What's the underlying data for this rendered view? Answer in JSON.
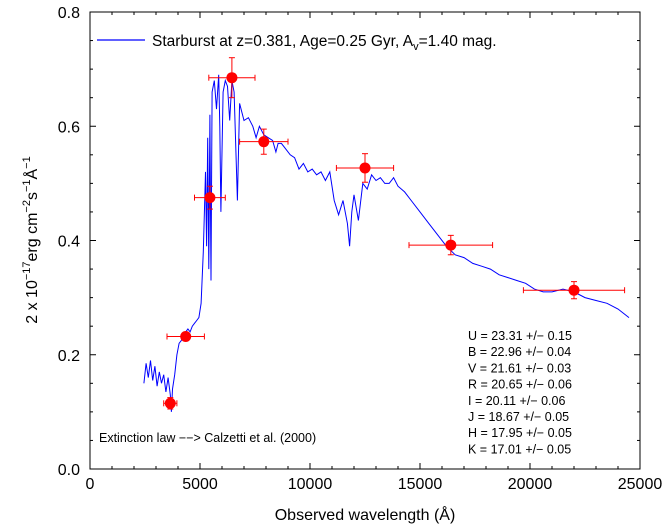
{
  "chart_data": {
    "type": "line",
    "xlabel": "Observed wavelength (Å)",
    "ylabel": {
      "prefix": "2 x 10",
      "exp1": "−17",
      "mid1": "erg cm",
      "exp2": "−2",
      "mid2": "s",
      "exp3": "−1",
      "mid3": "Å",
      "exp4": "−1"
    },
    "xlim": [
      0,
      25000
    ],
    "ylim": [
      0.0,
      0.8
    ],
    "xticks": [
      0,
      5000,
      10000,
      15000,
      20000,
      25000
    ],
    "xtick_labels": [
      "0",
      "5000",
      "10000",
      "15000",
      "20000",
      "25000"
    ],
    "yticks": [
      0.0,
      0.2,
      0.4,
      0.6,
      0.8
    ],
    "ytick_labels": [
      "0.0",
      "0.2",
      "0.4",
      "0.6",
      "0.8"
    ],
    "grid": false,
    "legend_position": "top",
    "colors": {
      "model": "#0000ff",
      "photometry": "#ff0000"
    },
    "legend": {
      "prefix": "Starburst at z=0.381, Age=0.25 Gyr, A",
      "sub": "v",
      "suffix": "=1.40 mag."
    },
    "series": [
      {
        "name": "Starburst at z=0.381, Age=0.25 Gyr, Av=1.40 mag.",
        "kind": "line",
        "x": [
          2450,
          2550,
          2650,
          2750,
          2850,
          2950,
          3050,
          3150,
          3250,
          3350,
          3450,
          3550,
          3650,
          3700,
          3750,
          3850,
          3950,
          4050,
          4150,
          4250,
          4350,
          4450,
          4550,
          4650,
          4750,
          4850,
          4950,
          5050,
          5150,
          5250,
          5300,
          5350,
          5400,
          5450,
          5500,
          5550,
          5650,
          5750,
          5850,
          5900,
          5950,
          6050,
          6150,
          6250,
          6350,
          6450,
          6550,
          6700,
          6800,
          6900,
          7000,
          7200,
          7400,
          7550,
          7700,
          7900,
          8100,
          8300,
          8450,
          8550,
          8700,
          8900,
          9100,
          9300,
          9500,
          9700,
          9900,
          10100,
          10300,
          10500,
          10700,
          10900,
          11100,
          11300,
          11500,
          11700,
          11800,
          11900,
          12000,
          12200,
          12400,
          12600,
          12800,
          13000,
          13200,
          13400,
          13600,
          13800,
          14000,
          14300,
          14600,
          15000,
          15400,
          15800,
          16200,
          16600,
          17000,
          17400,
          17800,
          18200,
          18600,
          19000,
          19400,
          19800,
          20200,
          20600,
          21000,
          21500,
          22000,
          22500,
          23000,
          23500,
          24000,
          24500
        ],
        "y": [
          0.15,
          0.185,
          0.16,
          0.19,
          0.155,
          0.18,
          0.145,
          0.17,
          0.15,
          0.165,
          0.135,
          0.16,
          0.13,
          0.1,
          0.14,
          0.165,
          0.2,
          0.22,
          0.225,
          0.235,
          0.24,
          0.245,
          0.24,
          0.25,
          0.255,
          0.26,
          0.265,
          0.29,
          0.38,
          0.52,
          0.39,
          0.58,
          0.35,
          0.62,
          0.33,
          0.66,
          0.68,
          0.63,
          0.69,
          0.6,
          0.45,
          0.66,
          0.68,
          0.67,
          0.61,
          0.68,
          0.66,
          0.47,
          0.64,
          0.625,
          0.61,
          0.615,
          0.6,
          0.58,
          0.6,
          0.585,
          0.58,
          0.575,
          0.555,
          0.57,
          0.57,
          0.56,
          0.55,
          0.545,
          0.525,
          0.535,
          0.52,
          0.525,
          0.515,
          0.52,
          0.505,
          0.52,
          0.47,
          0.445,
          0.47,
          0.43,
          0.39,
          0.45,
          0.48,
          0.435,
          0.5,
          0.49,
          0.515,
          0.505,
          0.51,
          0.5,
          0.5,
          0.51,
          0.495,
          0.485,
          0.47,
          0.45,
          0.43,
          0.41,
          0.39,
          0.375,
          0.37,
          0.36,
          0.355,
          0.35,
          0.34,
          0.335,
          0.33,
          0.325,
          0.315,
          0.31,
          0.31,
          0.315,
          0.31,
          0.3,
          0.295,
          0.29,
          0.28,
          0.265
        ]
      },
      {
        "name": "photometry",
        "kind": "points",
        "points": [
          {
            "band": "U",
            "x": 3650,
            "y": 0.115,
            "xerr": 300,
            "yerr": 0.01
          },
          {
            "band": "B",
            "x": 4350,
            "y": 0.232,
            "xerr": 850,
            "yerr": 0.005
          },
          {
            "band": "V",
            "x": 5450,
            "y": 0.475,
            "xerr": 700,
            "yerr": 0.02
          },
          {
            "band": "R",
            "x": 6450,
            "y": 0.685,
            "xerr": 1050,
            "yerr": 0.035
          },
          {
            "band": "I",
            "x": 7900,
            "y": 0.573,
            "xerr": 1100,
            "yerr": 0.022
          },
          {
            "band": "J",
            "x": 12500,
            "y": 0.527,
            "xerr": 1300,
            "yerr": 0.025
          },
          {
            "band": "H",
            "x": 16400,
            "y": 0.392,
            "xerr": 1900,
            "yerr": 0.017
          },
          {
            "band": "K",
            "x": 22000,
            "y": 0.313,
            "xerr": 2300,
            "yerr": 0.015
          }
        ]
      }
    ],
    "magnitudes": [
      "U = 23.31 +/− 0.15",
      "B = 22.96 +/− 0.04",
      "V = 21.61 +/− 0.03",
      "R = 20.65 +/− 0.06",
      "I = 20.11  +/− 0.06",
      "J = 18.67  +/− 0.05",
      "H = 17.95 +/− 0.05",
      "K = 17.01 +/− 0.05"
    ],
    "annotation": "Extinction law −−> Calzetti et al. (2000)"
  }
}
